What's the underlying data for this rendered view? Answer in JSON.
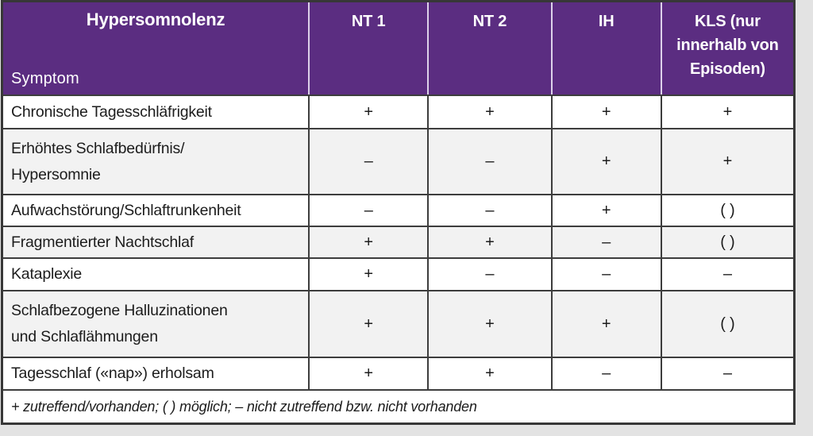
{
  "table": {
    "corner": {
      "title": "Hypersomnolenz",
      "subtitle": "Symptom"
    },
    "columns": [
      {
        "label": "NT 1"
      },
      {
        "label": "NT 2"
      },
      {
        "label": "IH"
      },
      {
        "label": "KLS (nur innerhalb von Episoden)"
      }
    ],
    "rows": [
      {
        "symptom": "Chronische Tagesschläfrigkeit",
        "values": [
          "+",
          "+",
          "+",
          "+"
        ]
      },
      {
        "symptom": "Erhöhtes Schlafbedürfnis/\nHypersomnie",
        "values": [
          "–",
          "–",
          "+",
          "+"
        ]
      },
      {
        "symptom": "Aufwachstörung/Schlaftrunkenheit",
        "values": [
          "–",
          "–",
          "+",
          "( )"
        ]
      },
      {
        "symptom": "Fragmentierter Nachtschlaf",
        "values": [
          "+",
          "+",
          "–",
          "( )"
        ]
      },
      {
        "symptom": "Kataplexie",
        "values": [
          "+",
          "–",
          "–",
          "–"
        ]
      },
      {
        "symptom": "Schlafbezogene Halluzinationen\nund Schlaflähmungen",
        "values": [
          "+",
          "+",
          "+",
          "( )"
        ]
      },
      {
        "symptom": "Tagesschlaf («nap») erholsam",
        "values": [
          "+",
          "+",
          "–",
          "–"
        ]
      }
    ],
    "legend": "+ zutreffend/vorhanden; ( ) möglich; – nicht zutreffend bzw. nicht vorhanden",
    "colors": {
      "header_background": "#5b2d81",
      "header_text": "#ffffff",
      "header_divider": "#ddd2ea",
      "row_alt_background": "#f2f2f2",
      "grid_border": "#3d3d3d"
    }
  }
}
